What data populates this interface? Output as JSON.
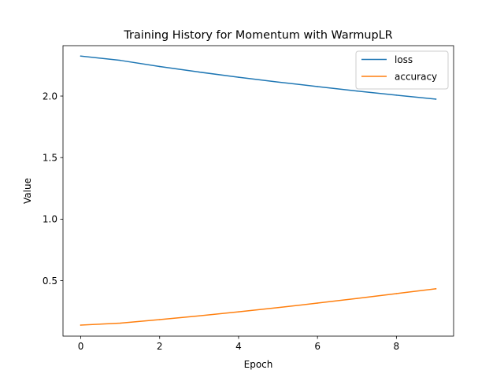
{
  "chart_data": {
    "type": "line",
    "title": "Training History for Momentum with WarmupLR",
    "xlabel": "Epoch",
    "ylabel": "Value",
    "x": [
      0,
      1,
      2,
      3,
      4,
      5,
      6,
      7,
      8,
      9
    ],
    "xlim": [
      -0.45,
      9.45
    ],
    "ylim": [
      0.0495,
      2.4095
    ],
    "xticks": [
      0,
      2,
      4,
      6,
      8
    ],
    "xtick_labels": [
      "0",
      "2",
      "4",
      "6",
      "8"
    ],
    "yticks": [
      0.5,
      1.0,
      1.5,
      2.0
    ],
    "ytick_labels": [
      "0.5",
      "1.0",
      "1.5",
      "2.0"
    ],
    "grid": false,
    "legend_position": "top-right",
    "series": [
      {
        "name": "loss",
        "color": "#1f77b4",
        "values": [
          2.325,
          2.29,
          2.24,
          2.195,
          2.153,
          2.114,
          2.077,
          2.041,
          2.007,
          1.975
        ]
      },
      {
        "name": "accuracy",
        "color": "#ff7f0e",
        "values": [
          0.139,
          0.155,
          0.184,
          0.214,
          0.247,
          0.281,
          0.318,
          0.356,
          0.395,
          0.434
        ]
      }
    ]
  }
}
